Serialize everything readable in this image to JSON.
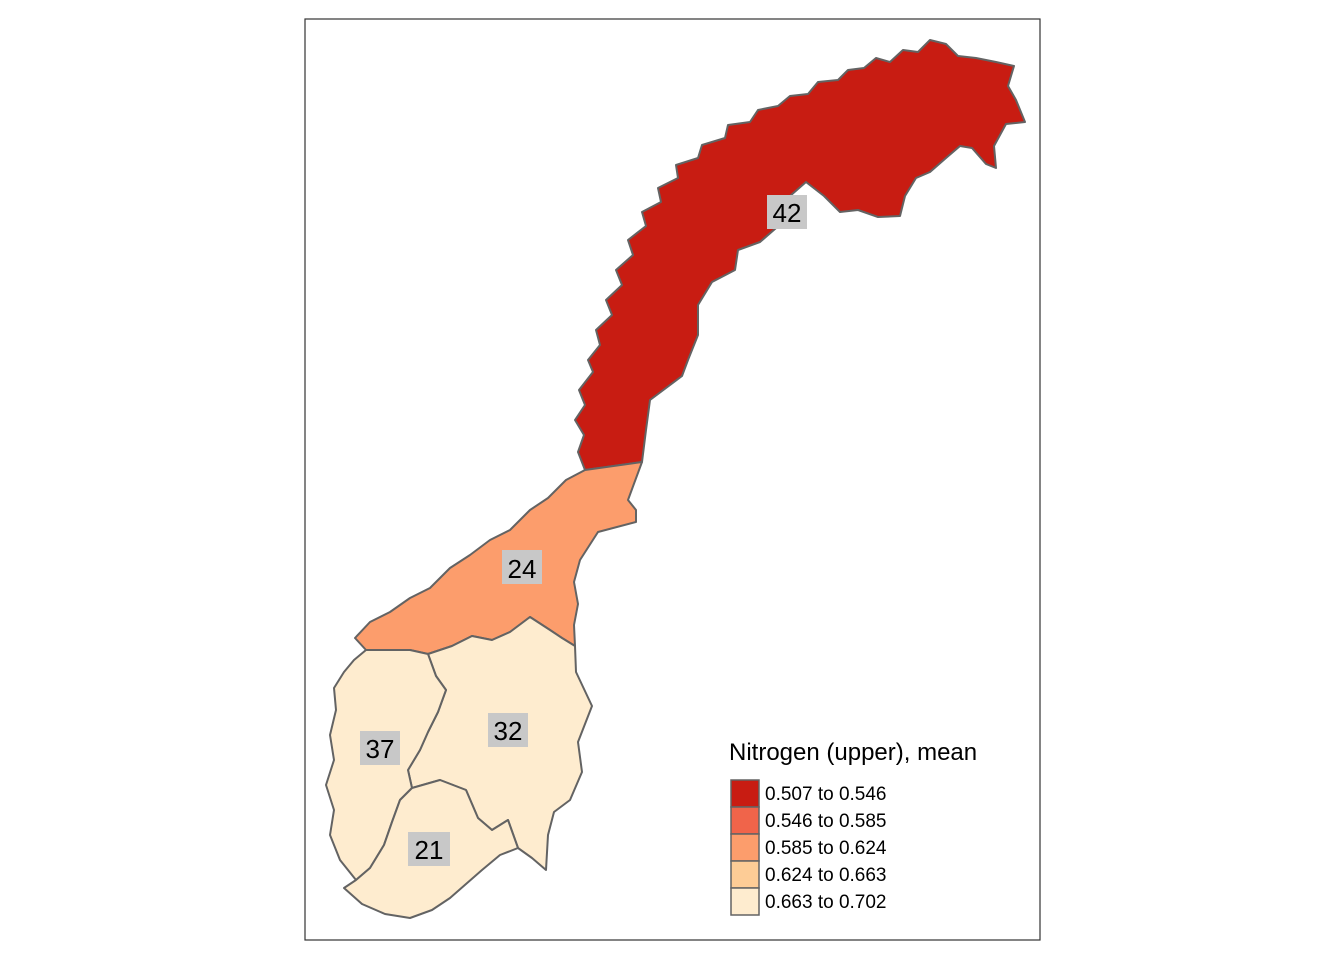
{
  "map": {
    "legend": {
      "title": "Nitrogen (upper), mean",
      "classes": [
        {
          "label": "0.507 to 0.546",
          "color": "#c81c12"
        },
        {
          "label": "0.546 to 0.585",
          "color": "#f0644a"
        },
        {
          "label": "0.585 to 0.624",
          "color": "#fc9d6c"
        },
        {
          "label": "0.624 to 0.663",
          "color": "#fdcc96"
        },
        {
          "label": "0.663 to 0.702",
          "color": "#feeccf"
        }
      ]
    },
    "regions": [
      {
        "id": "north",
        "count": "42",
        "class": 0
      },
      {
        "id": "central",
        "count": "24",
        "class": 2
      },
      {
        "id": "east",
        "count": "32",
        "class": 4
      },
      {
        "id": "west",
        "count": "37",
        "class": 4
      },
      {
        "id": "south",
        "count": "21",
        "class": 4
      }
    ],
    "label_bg": "#c8c8c8",
    "border_color": "#636363"
  }
}
